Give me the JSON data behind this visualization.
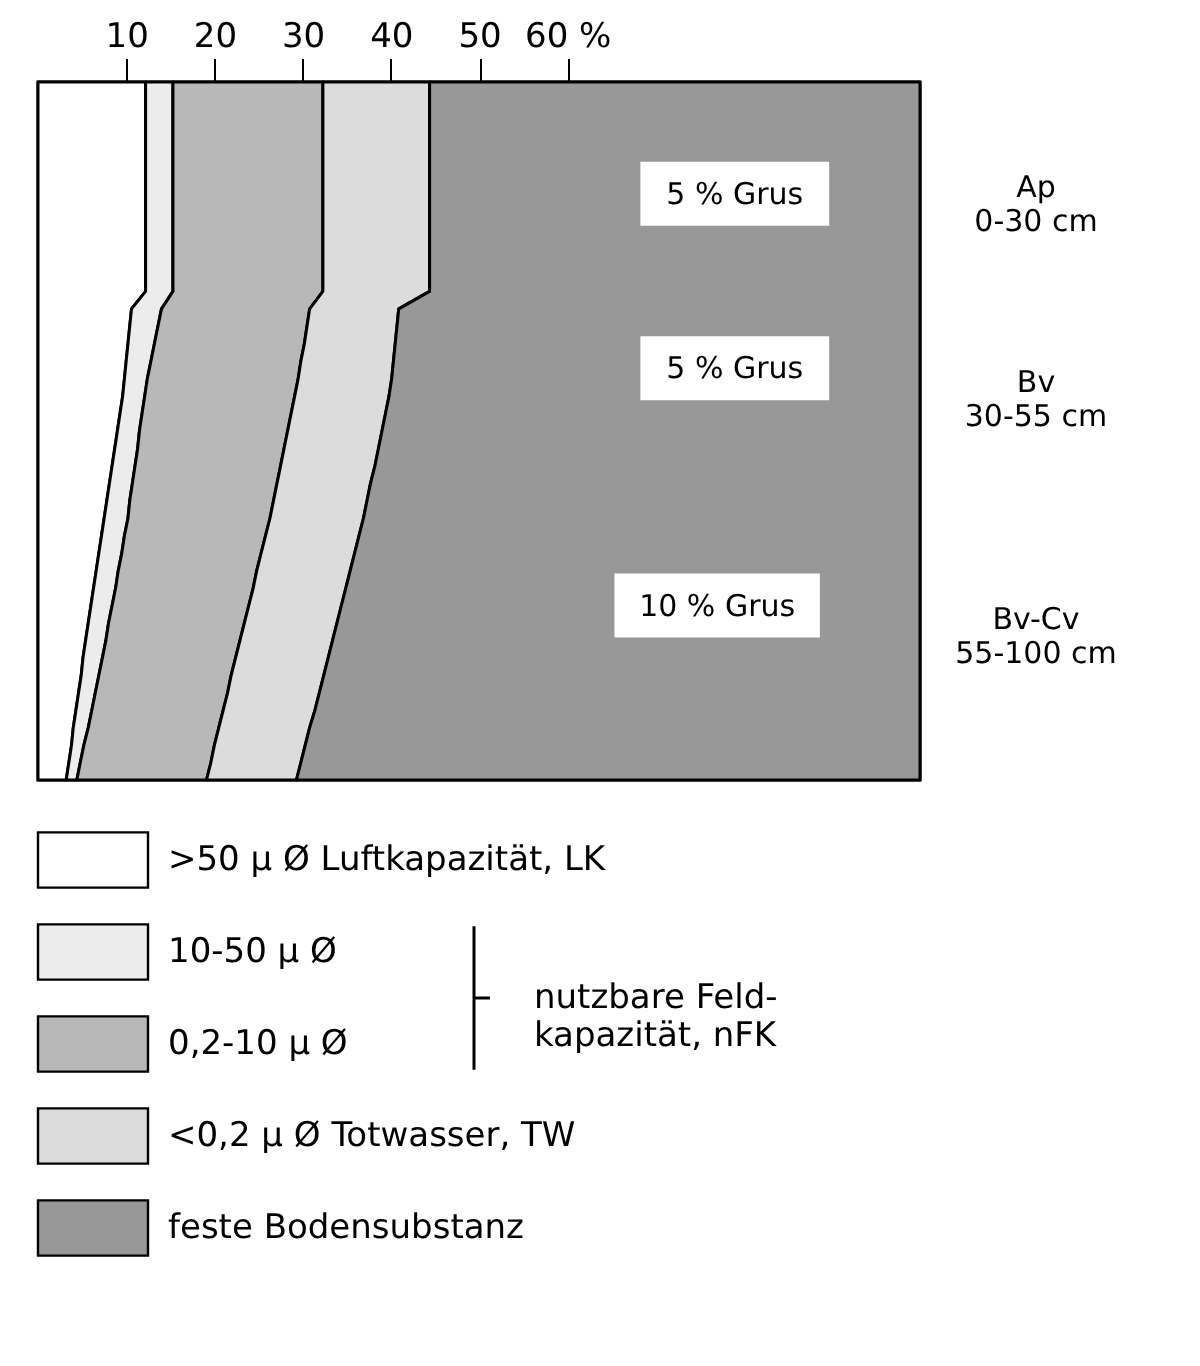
{
  "chart_data": {
    "type": "area",
    "orientation": "horizontal",
    "stacked": true,
    "legend": "bottom",
    "categories": [
      null,
      null,
      null,
      null,
      null,
      null,
      null,
      null,
      null,
      null,
      null,
      null,
      null,
      null,
      null,
      null,
      null,
      null,
      null,
      null,
      null,
      null,
      null,
      null,
      null,
      null,
      null,
      null,
      null,
      null,
      null,
      null,
      null,
      null,
      null,
      null,
      null,
      null,
      null,
      null,
      null
    ],
    "xlim": [
      0,
      100
    ],
    "xticks": [
      10,
      20,
      30,
      40,
      50,
      {
        "value": 60,
        "label": "60 %"
      }
    ],
    "series": [
      {
        "name": ">50 μ Ø Luftkapazität, LK",
        "color": "#ffffff",
        "values": [
          12.2,
          12.2,
          12.2,
          12.2,
          12.2,
          12.2,
          12.2,
          12.2,
          12.2,
          12.2,
          12.2,
          12.2,
          12.2,
          10.6,
          10.4,
          10.2,
          10.0,
          9.8,
          9.6,
          9.3,
          9.0,
          8.7,
          8.4,
          8.1,
          7.8,
          7.5,
          7.2,
          6.9,
          6.6,
          6.3,
          6.0,
          5.7,
          5.4,
          5.1,
          4.9,
          4.6,
          4.3,
          4.0,
          3.8,
          3.5,
          3.2
        ]
      },
      {
        "name": "10-50 μ Ø",
        "color": "#ececec",
        "values": [
          3.1,
          3.1,
          3.1,
          3.1,
          3.1,
          3.1,
          3.1,
          3.1,
          3.1,
          3.1,
          3.1,
          3.1,
          3.1,
          3.4,
          3.2,
          3.0,
          2.8,
          2.6,
          2.5,
          2.5,
          2.5,
          2.6,
          2.6,
          2.6,
          2.6,
          2.7,
          2.6,
          2.6,
          2.5,
          2.5,
          2.4,
          2.3,
          2.3,
          2.2,
          2.0,
          1.9,
          1.8,
          1.7,
          1.4,
          1.3,
          1.2
        ]
      },
      {
        "name": "0,2-10 μ Ø",
        "color": "#b8b8b8",
        "values": [
          17.0,
          17.0,
          17.0,
          17.0,
          17.0,
          17.0,
          17.0,
          17.0,
          17.0,
          17.0,
          17.0,
          17.0,
          17.0,
          16.8,
          16.9,
          17.0,
          17.0,
          17.1,
          17.0,
          16.9,
          16.8,
          16.6,
          16.5,
          16.4,
          16.3,
          16.1,
          16.0,
          15.8,
          15.7,
          15.6,
          15.5,
          15.4,
          15.2,
          15.1,
          15.0,
          15.0,
          14.9,
          14.8,
          14.8,
          14.8,
          14.7
        ]
      },
      {
        "name": "<0,2 μ Ø Totwasser, TW",
        "color": "#dcdcdc",
        "values": [
          12.1,
          12.1,
          12.1,
          12.1,
          12.1,
          12.1,
          12.1,
          12.1,
          12.1,
          12.1,
          12.1,
          12.1,
          12.1,
          10.1,
          10.2,
          10.3,
          10.5,
          10.6,
          10.7,
          10.7,
          10.7,
          10.7,
          10.7,
          10.6,
          10.6,
          10.6,
          10.6,
          10.6,
          10.6,
          10.5,
          10.5,
          10.5,
          10.5,
          10.5,
          10.5,
          10.4,
          10.4,
          10.3,
          10.3,
          10.2,
          10.2
        ]
      },
      {
        "name": "feste Bodensubstanz",
        "color": "#989898",
        "values": [
          55.6,
          55.6,
          55.6,
          55.6,
          55.6,
          55.6,
          55.6,
          55.6,
          55.6,
          55.6,
          55.6,
          55.6,
          55.6,
          59.1,
          59.3,
          59.5,
          59.7,
          59.9,
          60.2,
          60.6,
          61.0,
          61.4,
          61.8,
          62.3,
          62.7,
          63.1,
          63.6,
          64.1,
          64.6,
          65.1,
          65.6,
          66.1,
          66.6,
          67.1,
          67.6,
          68.1,
          68.6,
          69.2,
          69.7,
          70.2,
          70.7
        ]
      }
    ],
    "annotations": [
      "5 % Grus",
      "5 % Grus",
      "10 % Grus",
      "Ap\n0-30 cm",
      "Bv\n30-55 cm",
      "Bv-Cv\n55-100 cm",
      "nutzbare Feld-\nkapazität, nFK"
    ]
  }
}
